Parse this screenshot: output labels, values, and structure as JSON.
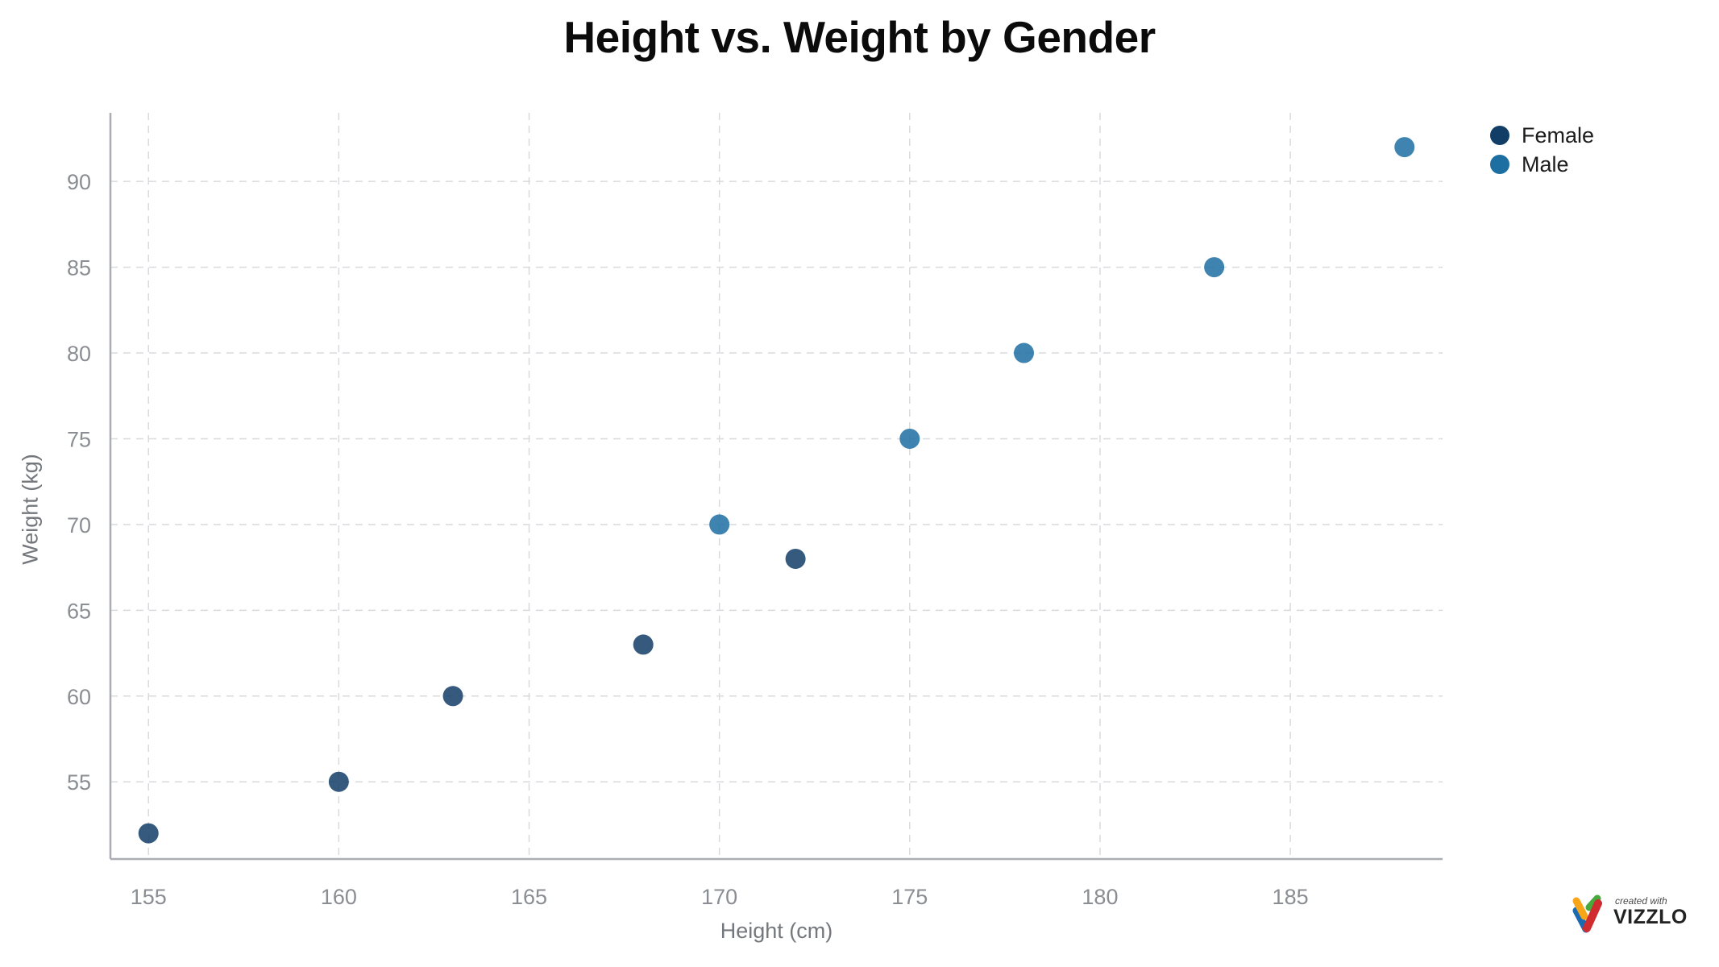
{
  "chart_data": {
    "type": "scatter",
    "title": "Height vs. Weight by Gender",
    "xlabel": "Height (cm)",
    "ylabel": "Weight (kg)",
    "xlim": [
      154,
      189
    ],
    "ylim": [
      50.5,
      94
    ],
    "x_ticks": [
      155,
      160,
      165,
      170,
      175,
      180,
      185
    ],
    "y_ticks": [
      55,
      60,
      65,
      70,
      75,
      80,
      85,
      90
    ],
    "grid": "dashed",
    "legend_position": "top-right",
    "point_radius": 12.5,
    "series": [
      {
        "name": "Female",
        "color": "#123d66",
        "points": [
          [
            155,
            52
          ],
          [
            160,
            55
          ],
          [
            163,
            60
          ],
          [
            168,
            63
          ],
          [
            172,
            68
          ]
        ]
      },
      {
        "name": "Male",
        "color": "#1d6fa2",
        "points": [
          [
            170,
            70
          ],
          [
            175,
            75
          ],
          [
            178,
            80
          ],
          [
            183,
            85
          ],
          [
            188,
            92
          ]
        ]
      }
    ]
  },
  "colors": {
    "grid": "#d8dadd",
    "axis": "#aaadb2",
    "tick_text": "#8a8e93",
    "axis_title_text": "#74787d",
    "title_text": "#0b0b0b"
  },
  "watermark": {
    "prefix": "created with",
    "brand": "VIZZLO",
    "logo": "vizzlo-v-icon"
  }
}
